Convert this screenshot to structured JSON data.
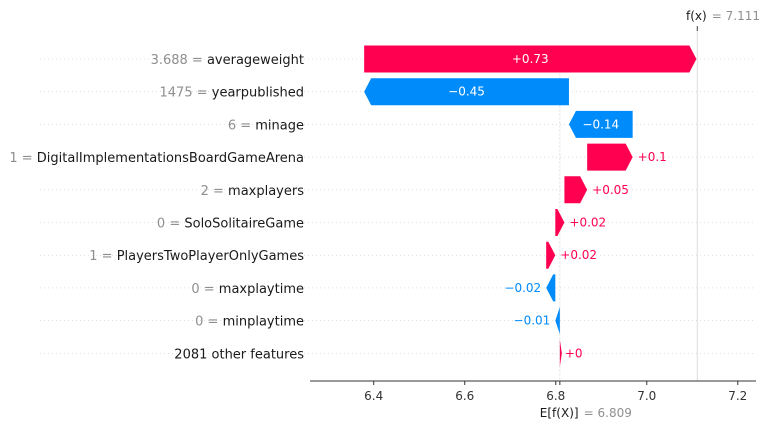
{
  "chart_data": {
    "type": "waterfall",
    "base_value": 6.809,
    "output_value": 7.111,
    "xlim": [
      6.26,
      7.24
    ],
    "xticks": [
      6.4,
      6.6,
      6.8,
      7.0,
      7.2
    ],
    "xtick_labels": [
      "6.4",
      "6.6",
      "6.8",
      "7.0",
      "7.2"
    ],
    "fx_label": "f(x)",
    "fx_value_text": "= 7.111",
    "efx_label": "E[f(X)]",
    "efx_value_text": "= 6.809",
    "features": [
      {
        "value": "3.688",
        "name": "averageweight",
        "contribution": 0.73,
        "label": "+0.73"
      },
      {
        "value": "1475",
        "name": "yearpublished",
        "contribution": -0.45,
        "label": "−0.45"
      },
      {
        "value": "6",
        "name": "minage",
        "contribution": -0.14,
        "label": "−0.14"
      },
      {
        "value": "1",
        "name": "DigitalImplementationsBoardGameArena",
        "contribution": 0.1,
        "label": "+0.1"
      },
      {
        "value": "2",
        "name": "maxplayers",
        "contribution": 0.05,
        "label": "+0.05"
      },
      {
        "value": "0",
        "name": "SoloSolitaireGame",
        "contribution": 0.02,
        "label": "+0.02"
      },
      {
        "value": "1",
        "name": "PlayersTwoPlayerOnlyGames",
        "contribution": 0.02,
        "label": "+0.02"
      },
      {
        "value": "0",
        "name": "maxplaytime",
        "contribution": -0.02,
        "label": "−0.02"
      },
      {
        "value": "0",
        "name": "minplaytime",
        "contribution": -0.01,
        "label": "−0.01"
      },
      {
        "value": "",
        "name": "2081 other features",
        "contribution": 0.0,
        "label": "+0"
      }
    ],
    "colors": {
      "positive": "#ff0051",
      "negative": "#008bfb"
    }
  }
}
